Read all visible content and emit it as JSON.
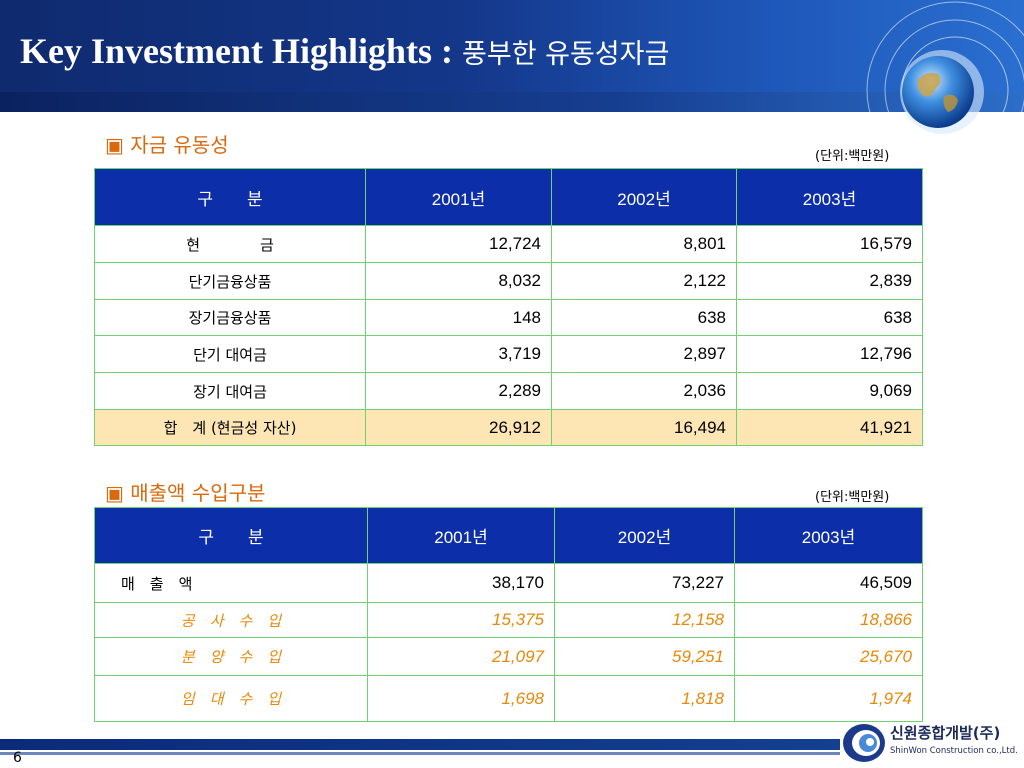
{
  "header": {
    "title_en": "Key Investment Highlights : ",
    "title_ko": "풍부한 유동성자금"
  },
  "section1": {
    "heading": "▣ 자금 유동성",
    "unit": "(단위:백만원)",
    "columns": [
      "구　　분",
      "2001년",
      "2002년",
      "2003년"
    ],
    "rows": [
      {
        "label": "현　　　　금",
        "v": [
          "12,724",
          "8,801",
          "16,579"
        ]
      },
      {
        "label": "단기금융상품",
        "v": [
          "8,032",
          "2,122",
          "2,839"
        ]
      },
      {
        "label": "장기금융상품",
        "v": [
          "148",
          "638",
          "638"
        ]
      },
      {
        "label": "단기 대여금",
        "v": [
          "3,719",
          "2,897",
          "12,796"
        ]
      },
      {
        "label": "장기 대여금",
        "v": [
          "2,289",
          "2,036",
          "9,069"
        ]
      }
    ],
    "total": {
      "label": "합　계 (현금성 자산)",
      "v": [
        "26,912",
        "16,494",
        "41,921"
      ]
    }
  },
  "section2": {
    "heading": "▣ 매출액 수입구분",
    "unit": "(단위:백만원)",
    "columns": [
      "구　　분",
      "2001년",
      "2002년",
      "2003년"
    ],
    "main_row": {
      "label": "매　출　액",
      "v": [
        "38,170",
        "73,227",
        "46,509"
      ]
    },
    "sub_rows": [
      {
        "label": "공　사　수　입",
        "v": [
          "15,375",
          "12,158",
          "18,866"
        ]
      },
      {
        "label": "분　양　수　입",
        "v": [
          "21,097",
          "59,251",
          "25,670"
        ]
      },
      {
        "label": "임　대　수　입",
        "v": [
          "1,698",
          "1,818",
          "1,974"
        ]
      }
    ]
  },
  "footer": {
    "page_number": "6",
    "logo_ko": "신원종합개발(주)",
    "logo_en": "ShinWon Construction co.,Ltd."
  },
  "colors": {
    "header_blue": "#14378a",
    "table_header": "#0c2ea8",
    "table_border": "#6fd36f",
    "accent_orange": "#d86a0c",
    "total_row_bg": "#fde5b4",
    "sub_row_text": "#e8890a"
  }
}
